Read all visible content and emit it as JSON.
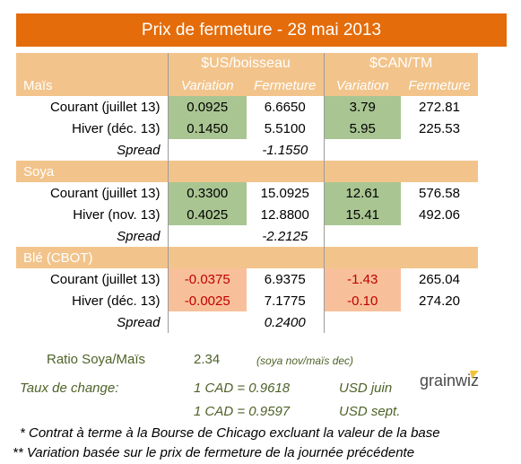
{
  "title": "Prix de fermeture - 28 mai 2013",
  "header": {
    "us_unit": "$US/boisseau",
    "can_unit": "$CAN/TM",
    "first_section": "Maïs",
    "variation": "Variation",
    "fermeture": "Fermeture"
  },
  "sections": {
    "soya": "Soya",
    "ble": "Blé (CBOT)"
  },
  "rows": {
    "mais_courant": {
      "label": "Courant (juillet 13)",
      "us_var": "0.0925",
      "us_ferm": "6.6650",
      "can_var": "3.79",
      "can_ferm": "272.81"
    },
    "mais_hiver": {
      "label": "Hiver (déc. 13)",
      "us_var": "0.1450",
      "us_ferm": "5.5100",
      "can_var": "5.95",
      "can_ferm": "225.53"
    },
    "mais_spread": {
      "label": "Spread",
      "value": "-1.1550"
    },
    "soya_courant": {
      "label": "Courant (juillet 13)",
      "us_var": "0.3300",
      "us_ferm": "15.0925",
      "can_var": "12.61",
      "can_ferm": "576.58"
    },
    "soya_hiver": {
      "label": "Hiver (nov. 13)",
      "us_var": "0.4025",
      "us_ferm": "12.8800",
      "can_var": "15.41",
      "can_ferm": "492.06"
    },
    "soya_spread": {
      "label": "Spread",
      "value": "-2.2125"
    },
    "ble_courant": {
      "label": "Courant (juillet 13)",
      "us_var": "-0.0375",
      "us_ferm": "6.9375",
      "can_var": "-1.43",
      "can_ferm": "265.04"
    },
    "ble_hiver": {
      "label": "Hiver (déc. 13)",
      "us_var": "-0.0025",
      "us_ferm": "7.1775",
      "can_var": "-0.10",
      "can_ferm": "274.20"
    },
    "ble_spread": {
      "label": "Spread",
      "value": "0.2400"
    }
  },
  "bottom": {
    "ratio_label": "Ratio Soya/Maïs",
    "ratio_value": "2.34",
    "ratio_note": "(soya nov/maïs dec)",
    "taux_label": "Taux de change:",
    "rate1": "1 CAD =  0.9618",
    "rate1_unit": "USD juin",
    "rate2": "1 CAD =  0.9597",
    "rate2_unit": "USD sept.",
    "footnote1": "* Contrat à terme à la Bourse de Chicago excluant la valeur de la base",
    "footnote2": "** Variation basée sur le prix de fermeture de la journée précédente",
    "logo_text": "grainwiz"
  },
  "colors": {
    "title_bg": "#e46c0a",
    "header_bg": "#f2c48b",
    "positive_bg": "#a9c592",
    "negative_bg": "#f8c09a",
    "negative_text": "#c00000",
    "bottom_text": "#4f6228"
  }
}
